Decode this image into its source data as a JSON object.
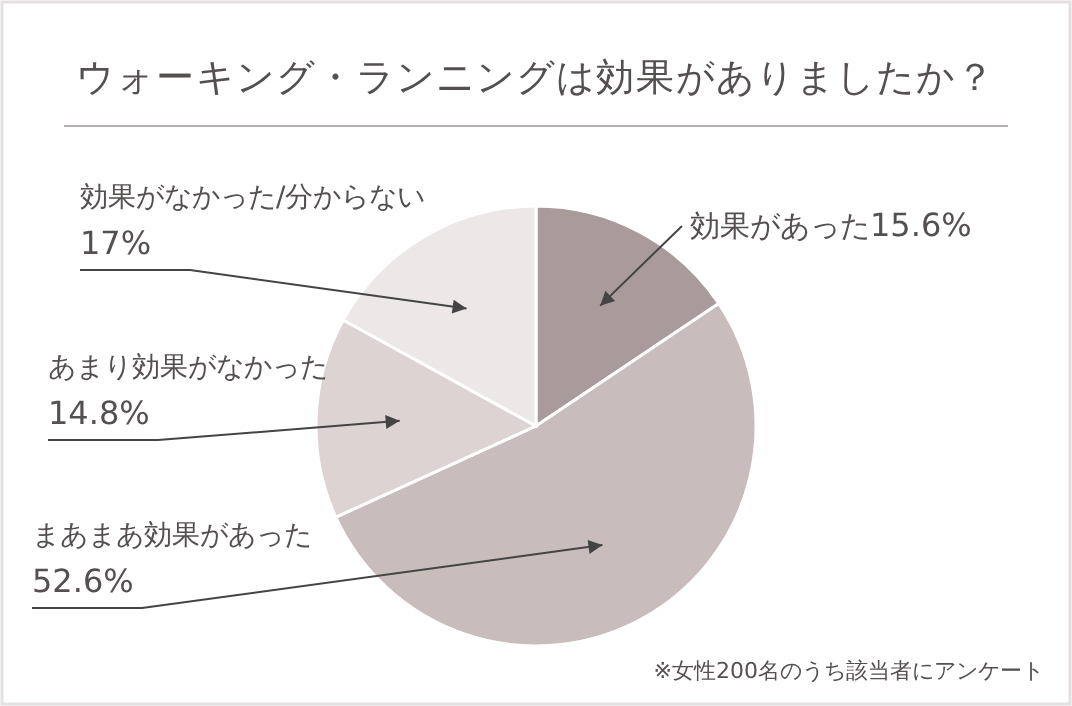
{
  "chart_data": {
    "type": "pie",
    "title": "ウォーキング・ランニングは効果がありましたか？",
    "categories": [
      "効果があった",
      "まあまあ効果があった",
      "あまり効果がなかった",
      "効果がなかった/分からない"
    ],
    "values": [
      15.6,
      52.6,
      14.8,
      17
    ],
    "value_labels": [
      "15.6%",
      "52.6%",
      "14.8%",
      "17%"
    ],
    "colors": [
      "#a99a9b",
      "#c8bcbc",
      "#ddd3d3",
      "#ede8e8"
    ],
    "annotations": [
      "※女性200名のうち該当者にアンケート"
    ]
  }
}
